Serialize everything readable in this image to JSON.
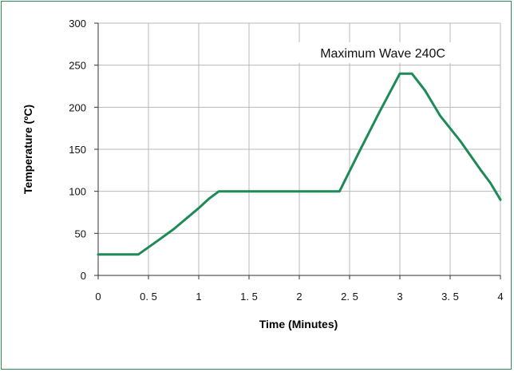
{
  "chart_data": {
    "type": "line",
    "xlabel": "Time (Minutes)",
    "ylabel": "Temperature (ºC)",
    "xlim": [
      0,
      4
    ],
    "ylim": [
      0,
      300
    ],
    "xticks": [
      "0",
      "0. 5",
      "1",
      "1. 5",
      "2",
      "2. 5",
      "3",
      "3. 5",
      "4"
    ],
    "yticks": [
      "0",
      "50",
      "100",
      "150",
      "200",
      "250",
      "300"
    ],
    "grid": true,
    "line_color": "#1e8a57",
    "grid_color": "#b8b8b8",
    "series": [
      {
        "x": [
          0,
          0.4,
          0.6,
          0.75,
          1.0,
          1.1,
          1.2,
          2.0,
          2.4,
          2.6,
          2.8,
          3.0,
          3.12,
          3.25,
          3.4,
          3.6,
          3.8,
          3.9,
          4.0
        ],
        "y": [
          25,
          25,
          42,
          55,
          80,
          91,
          100,
          100,
          100,
          148,
          195,
          240,
          240,
          220,
          190,
          160,
          126,
          110,
          90
        ]
      }
    ],
    "annotations": [
      {
        "text": "Maximum Wave 240C",
        "x": 2.83,
        "y": 265
      }
    ]
  }
}
